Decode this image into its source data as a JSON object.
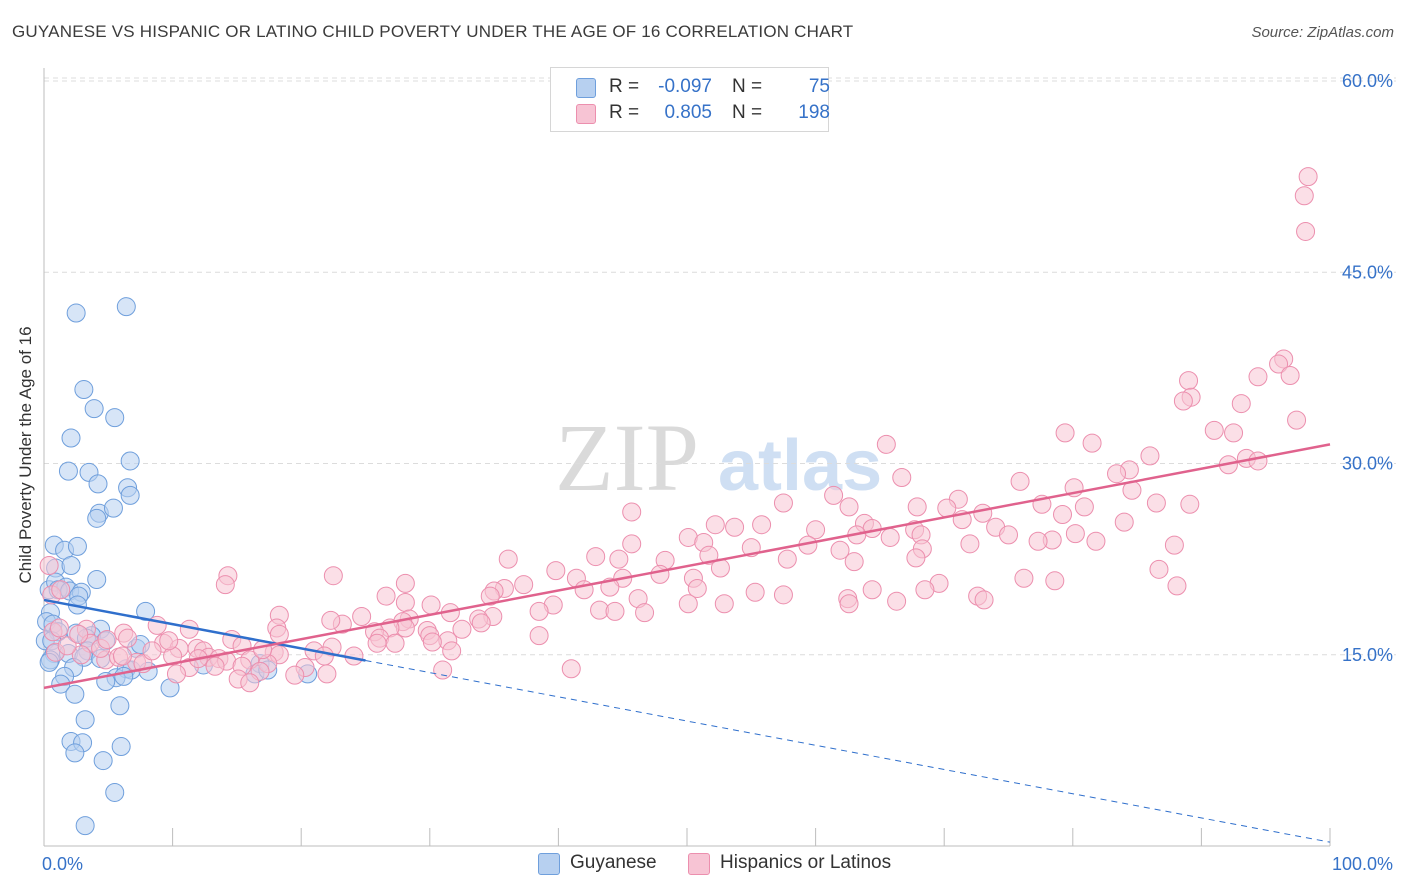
{
  "header": {
    "title": "GUYANESE VS HISPANIC OR LATINO CHILD POVERTY UNDER THE AGE OF 16 CORRELATION CHART",
    "source": "Source: ZipAtlas.com"
  },
  "watermark": {
    "part1": "ZIP",
    "part2": "atlas"
  },
  "legend_top": {
    "rows": [
      {
        "r_label": "R =",
        "r_value": "-0.097",
        "n_label": "N =",
        "n_value": "75"
      },
      {
        "r_label": "R =",
        "r_value": "0.805",
        "n_label": "N =",
        "n_value": "198"
      }
    ]
  },
  "legend_bottom": {
    "items": [
      "Guyanese",
      "Hispanics or Latinos"
    ]
  },
  "colors": {
    "blue_fill": "#b7d0f0",
    "blue_stroke": "#6f9fdc",
    "blue_line": "#2f6fcc",
    "pink_fill": "#f7c4d4",
    "pink_stroke": "#ec8fae",
    "pink_line": "#e0628d",
    "tick_label": "#3672c8",
    "grid": "#dcdcdc"
  },
  "chart_data": {
    "type": "scatter",
    "title": "GUYANESE VS HISPANIC OR LATINO CHILD POVERTY UNDER THE AGE OF 16 CORRELATION CHART",
    "xlabel": "",
    "ylabel": "Child Poverty Under the Age of 16",
    "xlim": [
      0,
      100
    ],
    "ylim": [
      0,
      60
    ],
    "x_tick_labels": [
      "0.0%",
      "100.0%"
    ],
    "y_ticks": [
      15,
      30,
      45,
      60
    ],
    "y_tick_labels": [
      "15.0%",
      "30.0%",
      "45.0%",
      "60.0%"
    ],
    "grid": true,
    "legend_position": "top-center",
    "series": [
      {
        "name": "Guyanese",
        "r": -0.097,
        "n": 75,
        "trend": {
          "x": [
            0,
            100
          ],
          "y": [
            19.3,
            0.3
          ],
          "solid_until_x": 25
        },
        "points": [
          [
            2.5,
            41.8
          ],
          [
            6.4,
            42.3
          ],
          [
            3.1,
            35.8
          ],
          [
            5.5,
            33.6
          ],
          [
            3.9,
            34.3
          ],
          [
            2.1,
            32.0
          ],
          [
            6.7,
            30.2
          ],
          [
            1.9,
            29.4
          ],
          [
            3.5,
            29.3
          ],
          [
            4.2,
            28.4
          ],
          [
            6.5,
            28.1
          ],
          [
            6.7,
            27.5
          ],
          [
            4.3,
            26.1
          ],
          [
            5.4,
            26.5
          ],
          [
            4.1,
            25.7
          ],
          [
            0.8,
            23.6
          ],
          [
            1.6,
            23.2
          ],
          [
            2.6,
            23.5
          ],
          [
            0.9,
            21.8
          ],
          [
            2.1,
            22.0
          ],
          [
            4.1,
            20.9
          ],
          [
            0.4,
            20.1
          ],
          [
            0.9,
            20.7
          ],
          [
            1.7,
            20.3
          ],
          [
            1.1,
            20.1
          ],
          [
            2.0,
            20.0
          ],
          [
            2.9,
            19.9
          ],
          [
            2.7,
            19.6
          ],
          [
            0.5,
            18.3
          ],
          [
            2.6,
            18.9
          ],
          [
            7.9,
            18.4
          ],
          [
            0.2,
            17.6
          ],
          [
            0.7,
            17.4
          ],
          [
            4.4,
            17.0
          ],
          [
            1.1,
            16.8
          ],
          [
            2.5,
            16.7
          ],
          [
            0.1,
            16.1
          ],
          [
            0.6,
            16.1
          ],
          [
            3.7,
            16.5
          ],
          [
            3.3,
            16.3
          ],
          [
            4.8,
            16.1
          ],
          [
            7.2,
            15.5
          ],
          [
            7.5,
            15.8
          ],
          [
            3.4,
            15.3
          ],
          [
            0.8,
            15.1
          ],
          [
            1.9,
            15.1
          ],
          [
            3.1,
            14.8
          ],
          [
            4.4,
            14.7
          ],
          [
            0.5,
            14.6
          ],
          [
            0.4,
            14.4
          ],
          [
            2.3,
            14.0
          ],
          [
            12.4,
            14.2
          ],
          [
            16.8,
            14.3
          ],
          [
            6.4,
            13.9
          ],
          [
            6.8,
            13.8
          ],
          [
            8.1,
            13.7
          ],
          [
            16.4,
            13.5
          ],
          [
            17.4,
            13.8
          ],
          [
            20.5,
            13.5
          ],
          [
            1.6,
            13.3
          ],
          [
            5.6,
            13.2
          ],
          [
            6.2,
            13.3
          ],
          [
            4.8,
            12.9
          ],
          [
            1.3,
            12.7
          ],
          [
            9.8,
            12.4
          ],
          [
            2.4,
            11.9
          ],
          [
            5.9,
            11.0
          ],
          [
            3.2,
            9.9
          ],
          [
            2.1,
            8.2
          ],
          [
            3.0,
            8.1
          ],
          [
            6.0,
            7.8
          ],
          [
            2.4,
            7.3
          ],
          [
            4.6,
            6.7
          ],
          [
            5.5,
            4.2
          ],
          [
            3.2,
            1.6
          ]
        ]
      },
      {
        "name": "Hispanics or Latinos",
        "r": 0.805,
        "n": 198,
        "trend": {
          "x": [
            0,
            100
          ],
          "y": [
            12.4,
            31.5
          ]
        },
        "points": [
          [
            98.3,
            52.5
          ],
          [
            98.0,
            51.0
          ],
          [
            98.1,
            48.2
          ],
          [
            96.4,
            38.2
          ],
          [
            96.0,
            37.8
          ],
          [
            96.9,
            36.9
          ],
          [
            94.4,
            36.8
          ],
          [
            89.0,
            36.5
          ],
          [
            89.2,
            35.2
          ],
          [
            88.6,
            34.9
          ],
          [
            93.1,
            34.7
          ],
          [
            97.4,
            33.4
          ],
          [
            91.0,
            32.6
          ],
          [
            92.5,
            32.4
          ],
          [
            79.4,
            32.4
          ],
          [
            81.5,
            31.6
          ],
          [
            65.5,
            31.5
          ],
          [
            93.5,
            30.4
          ],
          [
            94.4,
            30.2
          ],
          [
            86.0,
            30.6
          ],
          [
            92.1,
            29.9
          ],
          [
            84.4,
            29.5
          ],
          [
            66.7,
            28.9
          ],
          [
            83.4,
            29.2
          ],
          [
            75.9,
            28.6
          ],
          [
            80.1,
            28.1
          ],
          [
            84.6,
            27.9
          ],
          [
            61.4,
            27.5
          ],
          [
            71.1,
            27.2
          ],
          [
            57.5,
            26.9
          ],
          [
            77.6,
            26.8
          ],
          [
            89.1,
            26.8
          ],
          [
            80.9,
            26.6
          ],
          [
            86.5,
            26.9
          ],
          [
            67.9,
            26.6
          ],
          [
            70.2,
            26.5
          ],
          [
            62.6,
            26.6
          ],
          [
            73.0,
            26.1
          ],
          [
            79.2,
            26.0
          ],
          [
            45.7,
            26.2
          ],
          [
            63.8,
            25.3
          ],
          [
            71.4,
            25.6
          ],
          [
            55.8,
            25.2
          ],
          [
            74.0,
            25.0
          ],
          [
            84.0,
            25.4
          ],
          [
            64.4,
            24.9
          ],
          [
            67.7,
            24.8
          ],
          [
            75.0,
            24.4
          ],
          [
            52.2,
            25.2
          ],
          [
            53.7,
            25.0
          ],
          [
            68.2,
            24.4
          ],
          [
            60.0,
            24.8
          ],
          [
            63.2,
            24.4
          ],
          [
            78.4,
            24.0
          ],
          [
            80.2,
            24.5
          ],
          [
            50.1,
            24.2
          ],
          [
            65.8,
            24.2
          ],
          [
            72.0,
            23.7
          ],
          [
            55.0,
            23.4
          ],
          [
            87.9,
            23.6
          ],
          [
            59.4,
            23.6
          ],
          [
            61.9,
            23.2
          ],
          [
            68.3,
            23.3
          ],
          [
            51.3,
            23.8
          ],
          [
            45.7,
            23.7
          ],
          [
            81.8,
            23.9
          ],
          [
            77.3,
            23.9
          ],
          [
            51.7,
            22.8
          ],
          [
            67.8,
            22.6
          ],
          [
            42.9,
            22.7
          ],
          [
            57.8,
            22.5
          ],
          [
            63.0,
            22.3
          ],
          [
            44.7,
            22.5
          ],
          [
            48.3,
            22.4
          ],
          [
            36.1,
            22.5
          ],
          [
            52.6,
            21.8
          ],
          [
            86.7,
            21.7
          ],
          [
            39.8,
            21.6
          ],
          [
            47.9,
            21.3
          ],
          [
            45.0,
            21.0
          ],
          [
            41.4,
            21.0
          ],
          [
            76.2,
            21.0
          ],
          [
            69.6,
            20.6
          ],
          [
            78.6,
            20.8
          ],
          [
            50.5,
            21.0
          ],
          [
            44.0,
            20.3
          ],
          [
            14.3,
            21.2
          ],
          [
            22.5,
            21.2
          ],
          [
            37.3,
            20.5
          ],
          [
            28.1,
            20.6
          ],
          [
            35.8,
            20.2
          ],
          [
            14.1,
            20.5
          ],
          [
            68.5,
            20.1
          ],
          [
            42.0,
            20.1
          ],
          [
            50.8,
            20.2
          ],
          [
            35.0,
            20.0
          ],
          [
            64.4,
            20.1
          ],
          [
            72.6,
            19.6
          ],
          [
            88.1,
            20.4
          ],
          [
            55.3,
            19.9
          ],
          [
            26.6,
            19.6
          ],
          [
            34.7,
            19.6
          ],
          [
            46.2,
            19.4
          ],
          [
            73.1,
            19.3
          ],
          [
            62.5,
            19.4
          ],
          [
            57.5,
            19.7
          ],
          [
            66.3,
            19.2
          ],
          [
            28.1,
            19.1
          ],
          [
            50.1,
            19.0
          ],
          [
            62.6,
            19.0
          ],
          [
            52.9,
            19.0
          ],
          [
            39.6,
            18.9
          ],
          [
            43.2,
            18.5
          ],
          [
            30.1,
            18.9
          ],
          [
            46.7,
            18.3
          ],
          [
            18.3,
            18.1
          ],
          [
            38.5,
            18.4
          ],
          [
            31.6,
            18.3
          ],
          [
            34.9,
            18.0
          ],
          [
            24.7,
            18.0
          ],
          [
            33.8,
            17.8
          ],
          [
            28.4,
            17.8
          ],
          [
            23.2,
            17.4
          ],
          [
            22.3,
            17.7
          ],
          [
            44.4,
            18.4
          ],
          [
            27.9,
            17.6
          ],
          [
            28.1,
            17.1
          ],
          [
            34.0,
            17.5
          ],
          [
            18.1,
            17.1
          ],
          [
            26.9,
            17.1
          ],
          [
            32.5,
            17.0
          ],
          [
            11.3,
            17.0
          ],
          [
            29.8,
            16.9
          ],
          [
            25.7,
            16.8
          ],
          [
            3.3,
            17.0
          ],
          [
            6.2,
            16.7
          ],
          [
            30.0,
            16.5
          ],
          [
            26.1,
            16.3
          ],
          [
            38.5,
            16.5
          ],
          [
            18.3,
            16.6
          ],
          [
            31.4,
            16.1
          ],
          [
            14.6,
            16.2
          ],
          [
            30.2,
            16.0
          ],
          [
            22.4,
            15.6
          ],
          [
            25.9,
            15.9
          ],
          [
            27.3,
            15.9
          ],
          [
            9.3,
            15.9
          ],
          [
            15.4,
            15.7
          ],
          [
            21.0,
            15.3
          ],
          [
            10.5,
            15.5
          ],
          [
            11.9,
            15.5
          ],
          [
            12.4,
            15.3
          ],
          [
            3.6,
            15.9
          ],
          [
            31.7,
            15.3
          ],
          [
            17.9,
            15.2
          ],
          [
            18.3,
            15.0
          ],
          [
            21.8,
            14.9
          ],
          [
            2.9,
            15.0
          ],
          [
            10.0,
            14.9
          ],
          [
            12.8,
            14.8
          ],
          [
            24.1,
            14.9
          ],
          [
            13.6,
            14.7
          ],
          [
            16.0,
            14.6
          ],
          [
            14.2,
            14.5
          ],
          [
            15.4,
            14.1
          ],
          [
            4.8,
            14.6
          ],
          [
            7.2,
            14.4
          ],
          [
            17.4,
            14.3
          ],
          [
            11.3,
            14.0
          ],
          [
            13.3,
            14.1
          ],
          [
            20.3,
            14.0
          ],
          [
            41.0,
            13.9
          ],
          [
            31.0,
            13.8
          ],
          [
            16.8,
            13.7
          ],
          [
            22.0,
            13.5
          ],
          [
            19.5,
            13.4
          ],
          [
            15.1,
            13.1
          ],
          [
            16.0,
            12.8
          ],
          [
            10.3,
            13.5
          ],
          [
            7.7,
            14.3
          ],
          [
            5.8,
            14.8
          ],
          [
            4.4,
            15.5
          ],
          [
            8.4,
            15.3
          ],
          [
            6.5,
            16.3
          ],
          [
            0.9,
            15.2
          ],
          [
            1.8,
            15.7
          ],
          [
            0.7,
            16.8
          ],
          [
            1.2,
            17.1
          ],
          [
            2.7,
            16.6
          ],
          [
            0.6,
            19.7
          ],
          [
            1.3,
            20.1
          ],
          [
            0.4,
            22.0
          ],
          [
            4.9,
            16.2
          ],
          [
            8.8,
            17.3
          ],
          [
            6.1,
            14.9
          ],
          [
            9.7,
            16.1
          ],
          [
            12.0,
            14.7
          ],
          [
            17.0,
            15.4
          ]
        ]
      }
    ]
  }
}
